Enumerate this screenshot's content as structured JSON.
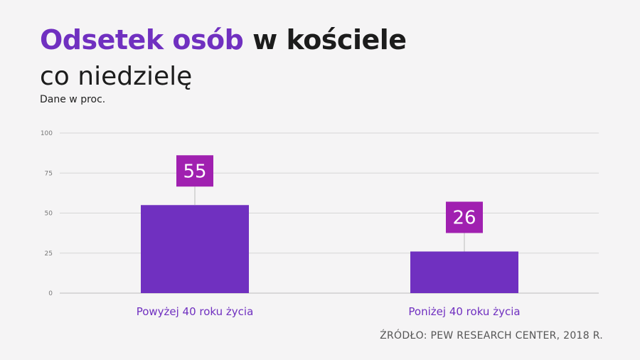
{
  "title": {
    "accent": "Odsetek osób",
    "rest": "w kościele",
    "line2": "co niedzielę"
  },
  "subtitle": "Dane w proc.",
  "source": "ŹRÓDŁO: PEW RESEARCH CENTER, 2018 R.",
  "colors": {
    "bar": "#7030c0",
    "label_box": "#a020b0",
    "category_text": "#7030c0",
    "grid": "#d6d6d6",
    "axis_tick_text": "#777777"
  },
  "chart_data": {
    "type": "bar",
    "categories": [
      "Powyżej 40 roku życia",
      "Poniżej 40 roku życia"
    ],
    "values": [
      55,
      26
    ],
    "ylim": [
      0,
      100
    ],
    "yticks": [
      0,
      25,
      50,
      75,
      100
    ],
    "grid": true,
    "xlabel": "",
    "ylabel": ""
  }
}
